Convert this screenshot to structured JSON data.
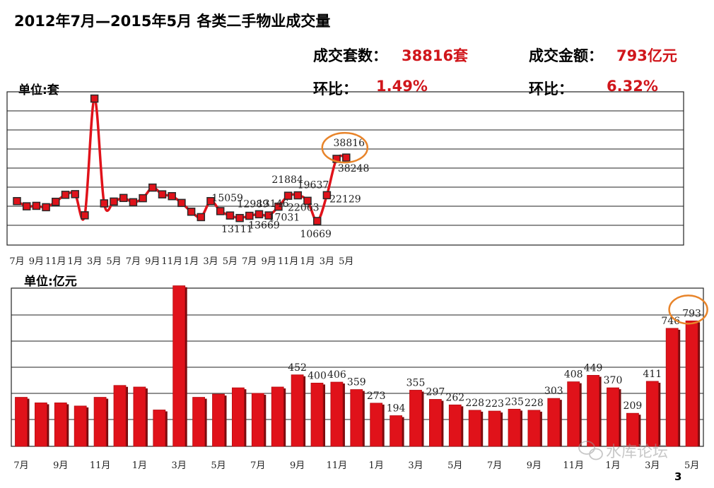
{
  "header": {
    "title": "2012年7月—2015年5月 各类二手物业成交量",
    "count_label": "成交套数：",
    "count_value": "38816套",
    "amount_label": "成交金额：",
    "amount_value": "793亿元",
    "mom_label_1": "环比：",
    "mom_value_1": "1.49%",
    "mom_label_2": "环比：",
    "mom_value_2": "6.32%",
    "colors": {
      "accent": "#d0161b",
      "mom_colon_2": "#1a9a3a"
    }
  },
  "watermark": "水库论坛",
  "page_number": "3",
  "chart_data": [
    {
      "type": "line",
      "unit_label": "单位:套",
      "x_tick_labels": [
        "7月",
        "9月",
        "11月",
        "1月",
        "3月",
        "5月",
        "7月",
        "9月",
        "11月",
        "1月",
        "3月",
        "5月",
        "7月",
        "9月",
        "11月",
        "1月",
        "3月",
        "5月"
      ],
      "ylim": [
        0,
        68000
      ],
      "grid": true,
      "series": [
        {
          "color": "#e0121a",
          "values": [
            19500,
            17200,
            17400,
            16800,
            19200,
            22300,
            22600,
            13200,
            65000,
            18500,
            19300,
            20900,
            19000,
            20800,
            25500,
            22500,
            21700,
            18700,
            14800,
            12400,
            19500,
            15059,
            13111,
            12000,
            12989,
            13669,
            13146,
            17031,
            21884,
            22063,
            19637,
            10669,
            22129,
            38248,
            38816
          ],
          "data_labels": [
            {
              "index": 21,
              "text": "15059"
            },
            {
              "index": 22,
              "text": "13111"
            },
            {
              "index": 24,
              "text": "12989"
            },
            {
              "index": 25,
              "text": "13669"
            },
            {
              "index": 26,
              "text": "13146"
            },
            {
              "index": 27,
              "text": "17031"
            },
            {
              "index": 28,
              "text": "21884"
            },
            {
              "index": 29,
              "text": "22063"
            },
            {
              "index": 30,
              "text": "19637"
            },
            {
              "index": 31,
              "text": "10669"
            },
            {
              "index": 32,
              "text": "22129"
            },
            {
              "index": 33,
              "text": "38248"
            },
            {
              "index": 34,
              "text": "38816"
            }
          ],
          "highlight_index": 34
        }
      ]
    },
    {
      "type": "bar",
      "unit_label": "单位:亿元",
      "x_tick_labels": [
        "7月",
        "9月",
        "11月",
        "1月",
        "3月",
        "5月",
        "7月",
        "9月",
        "11月",
        "1月",
        "3月",
        "5月",
        "7月",
        "9月",
        "11月",
        "1月",
        "3月",
        "5月"
      ],
      "ylim": [
        0,
        1000
      ],
      "grid": true,
      "series": [
        {
          "color": "#e0121a",
          "values": [
            310,
            275,
            275,
            255,
            310,
            385,
            375,
            230,
            1015,
            310,
            330,
            370,
            335,
            375,
            452,
            400,
            406,
            359,
            273,
            194,
            355,
            297,
            262,
            228,
            223,
            235,
            228,
            303,
            408,
            449,
            370,
            209,
            411,
            746,
            793
          ],
          "data_labels": [
            {
              "index": 14,
              "text": "452"
            },
            {
              "index": 15,
              "text": "400"
            },
            {
              "index": 16,
              "text": "406"
            },
            {
              "index": 17,
              "text": "359"
            },
            {
              "index": 18,
              "text": "273"
            },
            {
              "index": 19,
              "text": "194"
            },
            {
              "index": 20,
              "text": "355"
            },
            {
              "index": 21,
              "text": "297"
            },
            {
              "index": 22,
              "text": "262"
            },
            {
              "index": 23,
              "text": "228"
            },
            {
              "index": 24,
              "text": "223"
            },
            {
              "index": 25,
              "text": "235"
            },
            {
              "index": 26,
              "text": "228"
            },
            {
              "index": 27,
              "text": "303"
            },
            {
              "index": 28,
              "text": "408"
            },
            {
              "index": 29,
              "text": "449"
            },
            {
              "index": 30,
              "text": "370"
            },
            {
              "index": 31,
              "text": "209"
            },
            {
              "index": 32,
              "text": "411"
            },
            {
              "index": 33,
              "text": "746"
            },
            {
              "index": 34,
              "text": "793"
            }
          ],
          "highlight_index": 34
        }
      ]
    }
  ]
}
